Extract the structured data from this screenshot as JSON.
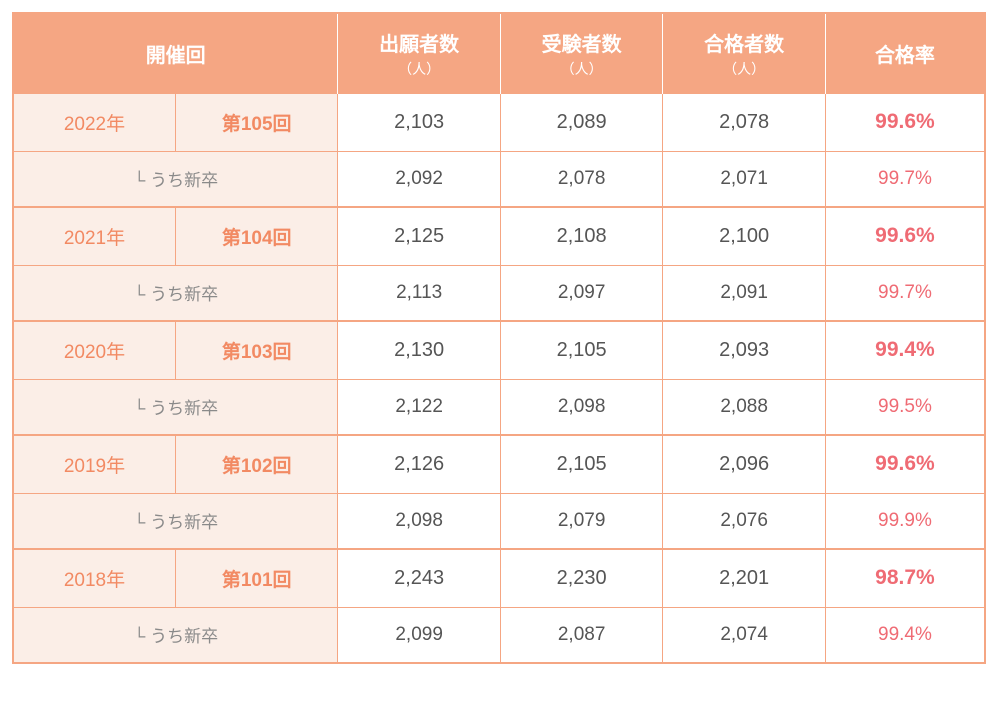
{
  "type": "table",
  "colors": {
    "header_bg": "#f5a683",
    "header_text": "#ffffff",
    "border": "#f5a683",
    "year_session_bg": "#fbeee7",
    "year_session_text": "#f28a63",
    "sub_label_text": "#8a8a8a",
    "num_text": "#555555",
    "rate_text": "#ef6b74",
    "cell_bg": "#ffffff"
  },
  "headers": {
    "session": "開催回",
    "applicants": "出願者数",
    "examinees": "受験者数",
    "passers": "合格者数",
    "rate": "合格率",
    "unit_people": "（人）"
  },
  "sub_label": "└ うち新卒",
  "groups": [
    {
      "year": "2022年",
      "session": "第105回",
      "main": {
        "applicants": "2,103",
        "examinees": "2,089",
        "passers": "2,078",
        "rate": "99.6%"
      },
      "sub": {
        "applicants": "2,092",
        "examinees": "2,078",
        "passers": "2,071",
        "rate": "99.7%"
      }
    },
    {
      "year": "2021年",
      "session": "第104回",
      "main": {
        "applicants": "2,125",
        "examinees": "2,108",
        "passers": "2,100",
        "rate": "99.6%"
      },
      "sub": {
        "applicants": "2,113",
        "examinees": "2,097",
        "passers": "2,091",
        "rate": "99.7%"
      }
    },
    {
      "year": "2020年",
      "session": "第103回",
      "main": {
        "applicants": "2,130",
        "examinees": "2,105",
        "passers": "2,093",
        "rate": "99.4%"
      },
      "sub": {
        "applicants": "2,122",
        "examinees": "2,098",
        "passers": "2,088",
        "rate": "99.5%"
      }
    },
    {
      "year": "2019年",
      "session": "第102回",
      "main": {
        "applicants": "2,126",
        "examinees": "2,105",
        "passers": "2,096",
        "rate": "99.6%"
      },
      "sub": {
        "applicants": "2,098",
        "examinees": "2,079",
        "passers": "2,076",
        "rate": "99.9%"
      }
    },
    {
      "year": "2018年",
      "session": "第101回",
      "main": {
        "applicants": "2,243",
        "examinees": "2,230",
        "passers": "2,201",
        "rate": "98.7%"
      },
      "sub": {
        "applicants": "2,099",
        "examinees": "2,087",
        "passers": "2,074",
        "rate": "99.4%"
      }
    }
  ]
}
